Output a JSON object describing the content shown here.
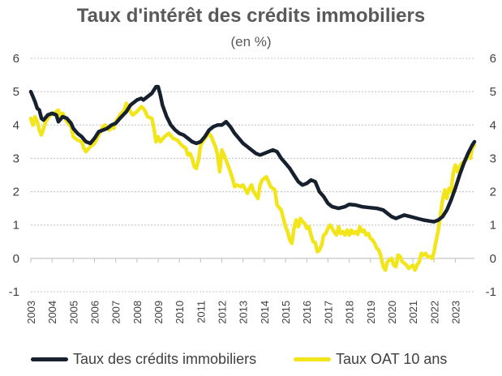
{
  "chart_data": {
    "type": "line",
    "title": "Taux d'intérêt des crédits immobiliers",
    "subtitle": "(en %)",
    "ylim": [
      -1,
      6
    ],
    "yticks": [
      "6",
      "5",
      "4",
      "3",
      "2",
      "1",
      "0",
      "-1"
    ],
    "ytick_values": [
      6,
      5,
      4,
      3,
      2,
      1,
      0,
      -1
    ],
    "xlim": [
      2003.0,
      2023.9
    ],
    "xticks": [
      "2003",
      "2004",
      "2005",
      "2006",
      "2007",
      "2008",
      "2009",
      "2010",
      "2011",
      "2012",
      "2013",
      "2014",
      "2015",
      "2016",
      "2017",
      "2018",
      "2019",
      "2020",
      "2021",
      "2022",
      "2023"
    ],
    "xtick_values": [
      2003,
      2004,
      2005,
      2006,
      2007,
      2008,
      2009,
      2010,
      2011,
      2012,
      2013,
      2014,
      2015,
      2016,
      2017,
      2018,
      2019,
      2020,
      2021,
      2022,
      2023
    ],
    "grid": true,
    "legend_position": "bottom",
    "series": [
      {
        "name": "Taux des crédits immobiliers",
        "color": "#17202e",
        "x": [
          2003.0,
          2003.1,
          2003.2,
          2003.3,
          2003.4,
          2003.5,
          2003.6,
          2003.8,
          2004.0,
          2004.2,
          2004.3,
          2004.5,
          2004.7,
          2004.9,
          2005.0,
          2005.2,
          2005.4,
          2005.6,
          2005.8,
          2006.0,
          2006.2,
          2006.4,
          2006.6,
          2006.8,
          2007.0,
          2007.2,
          2007.5,
          2007.7,
          2008.0,
          2008.2,
          2008.3,
          2008.5,
          2008.7,
          2008.8,
          2008.9,
          2009.0,
          2009.1,
          2009.2,
          2009.4,
          2009.6,
          2009.8,
          2010.0,
          2010.2,
          2010.4,
          2010.6,
          2010.8,
          2011.0,
          2011.2,
          2011.4,
          2011.6,
          2011.8,
          2012.0,
          2012.1,
          2012.2,
          2012.4,
          2012.6,
          2012.8,
          2013.0,
          2013.2,
          2013.4,
          2013.6,
          2013.8,
          2014.0,
          2014.2,
          2014.4,
          2014.6,
          2014.8,
          2015.0,
          2015.2,
          2015.4,
          2015.6,
          2015.8,
          2016.0,
          2016.2,
          2016.4,
          2016.6,
          2016.8,
          2017.0,
          2017.2,
          2017.5,
          2017.8,
          2018.0,
          2018.3,
          2018.6,
          2019.0,
          2019.3,
          2019.6,
          2019.8,
          2020.0,
          2020.2,
          2020.4,
          2020.6,
          2020.9,
          2021.2,
          2021.5,
          2021.8,
          2022.0,
          2022.2,
          2022.4,
          2022.6,
          2022.8,
          2023.0,
          2023.2,
          2023.4,
          2023.6,
          2023.8,
          2023.9
        ],
        "values": [
          5.0,
          4.85,
          4.7,
          4.5,
          4.45,
          4.2,
          4.15,
          4.3,
          4.35,
          4.3,
          4.1,
          4.25,
          4.2,
          4.05,
          3.9,
          3.75,
          3.65,
          3.5,
          3.45,
          3.6,
          3.8,
          3.85,
          3.9,
          4.0,
          4.05,
          4.2,
          4.4,
          4.6,
          4.75,
          4.8,
          4.75,
          4.85,
          4.95,
          5.05,
          5.15,
          5.15,
          4.9,
          4.6,
          4.25,
          4.0,
          3.85,
          3.75,
          3.7,
          3.6,
          3.5,
          3.45,
          3.5,
          3.65,
          3.85,
          3.95,
          4.0,
          4.0,
          4.05,
          4.1,
          3.95,
          3.75,
          3.6,
          3.45,
          3.35,
          3.25,
          3.15,
          3.1,
          3.15,
          3.2,
          3.25,
          3.2,
          3.0,
          2.85,
          2.7,
          2.5,
          2.3,
          2.2,
          2.25,
          2.35,
          2.3,
          2.0,
          1.85,
          1.65,
          1.55,
          1.5,
          1.55,
          1.62,
          1.6,
          1.55,
          1.52,
          1.5,
          1.45,
          1.35,
          1.25,
          1.2,
          1.25,
          1.3,
          1.25,
          1.2,
          1.15,
          1.12,
          1.1,
          1.15,
          1.25,
          1.45,
          1.75,
          2.1,
          2.5,
          2.85,
          3.15,
          3.4,
          3.5
        ]
      },
      {
        "name": "Taux OAT 10 ans",
        "color": "#f2e51a",
        "x": [
          2003.0,
          2003.1,
          2003.2,
          2003.3,
          2003.4,
          2003.5,
          2003.7,
          2003.9,
          2004.1,
          2004.3,
          2004.4,
          2004.5,
          2004.7,
          2004.9,
          2005.0,
          2005.2,
          2005.4,
          2005.5,
          2005.6,
          2005.8,
          2006.0,
          2006.2,
          2006.4,
          2006.5,
          2006.7,
          2006.8,
          2006.9,
          2007.0,
          2007.2,
          2007.4,
          2007.5,
          2007.6,
          2007.8,
          2008.0,
          2008.2,
          2008.3,
          2008.4,
          2008.5,
          2008.7,
          2008.8,
          2008.9,
          2009.0,
          2009.1,
          2009.3,
          2009.5,
          2009.7,
          2009.9,
          2010.1,
          2010.3,
          2010.4,
          2010.5,
          2010.6,
          2010.7,
          2010.8,
          2010.9,
          2011.0,
          2011.2,
          2011.4,
          2011.5,
          2011.6,
          2011.7,
          2011.8,
          2011.9,
          2012.0,
          2012.2,
          2012.4,
          2012.5,
          2012.6,
          2012.7,
          2012.9,
          2013.0,
          2013.2,
          2013.3,
          2013.4,
          2013.5,
          2013.7,
          2013.8,
          2013.9,
          2014.0,
          2014.1,
          2014.2,
          2014.3,
          2014.5,
          2014.6,
          2014.8,
          2014.9,
          2015.0,
          2015.1,
          2015.2,
          2015.3,
          2015.4,
          2015.5,
          2015.6,
          2015.7,
          2015.8,
          2015.9,
          2016.0,
          2016.1,
          2016.2,
          2016.3,
          2016.4,
          2016.5,
          2016.6,
          2016.7,
          2016.8,
          2016.9,
          2017.0,
          2017.1,
          2017.2,
          2017.3,
          2017.4,
          2017.5,
          2017.6,
          2017.7,
          2017.8,
          2017.9,
          2018.0,
          2018.1,
          2018.2,
          2018.3,
          2018.4,
          2018.5,
          2018.6,
          2018.7,
          2018.8,
          2018.9,
          2019.0,
          2019.1,
          2019.2,
          2019.3,
          2019.4,
          2019.5,
          2019.6,
          2019.7,
          2019.8,
          2019.9,
          2020.0,
          2020.1,
          2020.2,
          2020.3,
          2020.4,
          2020.5,
          2020.6,
          2020.7,
          2020.8,
          2020.9,
          2021.0,
          2021.1,
          2021.2,
          2021.3,
          2021.4,
          2021.5,
          2021.6,
          2021.7,
          2021.8,
          2021.9,
          2022.0,
          2022.1,
          2022.2,
          2022.3,
          2022.4,
          2022.5,
          2022.6,
          2022.7,
          2022.8,
          2022.9,
          2023.0,
          2023.1,
          2023.2,
          2023.3,
          2023.4,
          2023.5,
          2023.6,
          2023.7,
          2023.8,
          2023.9
        ],
        "values": [
          4.2,
          4.0,
          4.25,
          4.1,
          3.85,
          3.7,
          4.1,
          4.3,
          4.35,
          4.45,
          4.2,
          4.35,
          4.1,
          3.95,
          3.65,
          3.55,
          3.5,
          3.3,
          3.2,
          3.35,
          3.45,
          3.7,
          3.95,
          4.0,
          3.85,
          3.95,
          3.9,
          4.1,
          4.3,
          4.45,
          4.65,
          4.5,
          4.3,
          4.4,
          4.55,
          4.5,
          4.4,
          4.25,
          4.2,
          3.9,
          3.5,
          3.65,
          3.5,
          3.65,
          3.75,
          3.6,
          3.55,
          3.4,
          3.3,
          3.1,
          3.15,
          3.0,
          2.75,
          2.7,
          2.95,
          3.4,
          3.6,
          3.75,
          3.65,
          3.5,
          3.35,
          3.1,
          2.6,
          3.25,
          2.95,
          2.6,
          2.4,
          2.15,
          2.2,
          2.15,
          2.2,
          1.95,
          2.1,
          2.2,
          2.0,
          1.8,
          2.2,
          2.35,
          2.4,
          2.45,
          2.3,
          2.15,
          2.05,
          1.6,
          1.45,
          1.2,
          0.95,
          0.8,
          0.55,
          0.45,
          0.9,
          1.15,
          0.95,
          1.2,
          1.1,
          1.05,
          0.9,
          0.95,
          0.7,
          0.5,
          0.48,
          0.2,
          0.25,
          0.4,
          0.7,
          0.75,
          0.9,
          1.0,
          0.9,
          0.78,
          0.7,
          0.95,
          0.75,
          0.8,
          0.7,
          0.85,
          0.7,
          0.85,
          0.75,
          0.8,
          0.72,
          0.95,
          0.8,
          0.85,
          0.7,
          0.75,
          0.6,
          0.55,
          0.45,
          0.3,
          0.25,
          0.05,
          -0.25,
          -0.35,
          -0.1,
          -0.05,
          0.0,
          -0.2,
          -0.25,
          0.1,
          0.05,
          -0.1,
          -0.15,
          -0.2,
          -0.3,
          -0.25,
          -0.2,
          -0.35,
          -0.2,
          -0.1,
          0.15,
          0.1,
          0.15,
          0.05,
          0.05,
          0.0,
          0.2,
          0.55,
          0.85,
          1.3,
          1.75,
          2.05,
          1.8,
          2.1,
          2.0,
          2.55,
          2.8,
          2.6,
          2.75,
          2.85,
          2.9,
          2.95,
          3.1,
          3.0,
          3.3,
          3.4
        ]
      }
    ]
  }
}
